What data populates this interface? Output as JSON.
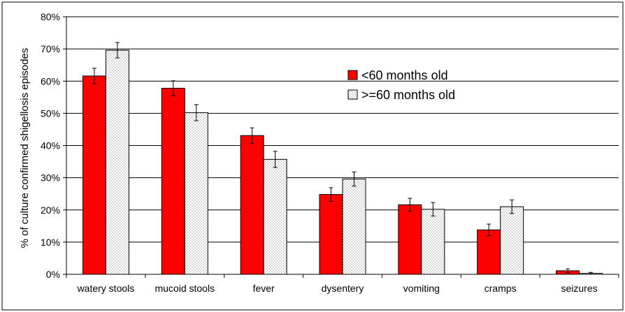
{
  "chart_data": {
    "type": "bar",
    "ylabel": "% of culture confirmed shigellosis episodes",
    "ylim": [
      0,
      80
    ],
    "y_ticks": [
      "0%",
      "10%",
      "20%",
      "30%",
      "40%",
      "50%",
      "60%",
      "70%",
      "80%"
    ],
    "categories": [
      "watery stools",
      "mucoid stools",
      "fever",
      "dysentery",
      "vomiting",
      "cramps",
      "seizures"
    ],
    "series": [
      {
        "name": "<60 months old",
        "color": "#ff0000",
        "pattern": "solid",
        "values": [
          61.6,
          57.8,
          43.1,
          24.8,
          21.6,
          13.8,
          1.1
        ],
        "error": [
          2.4,
          2.3,
          2.4,
          2.1,
          2.0,
          1.8,
          0.6
        ]
      },
      {
        "name": ">=60 months old",
        "color": "#ffffff",
        "pattern": "dotted",
        "values": [
          69.6,
          50.2,
          35.7,
          29.6,
          20.2,
          21.0,
          0.3
        ],
        "error": [
          2.4,
          2.5,
          2.5,
          2.2,
          2.1,
          2.1,
          0.3
        ]
      }
    ],
    "grid": true,
    "legend_position": "top-right"
  }
}
